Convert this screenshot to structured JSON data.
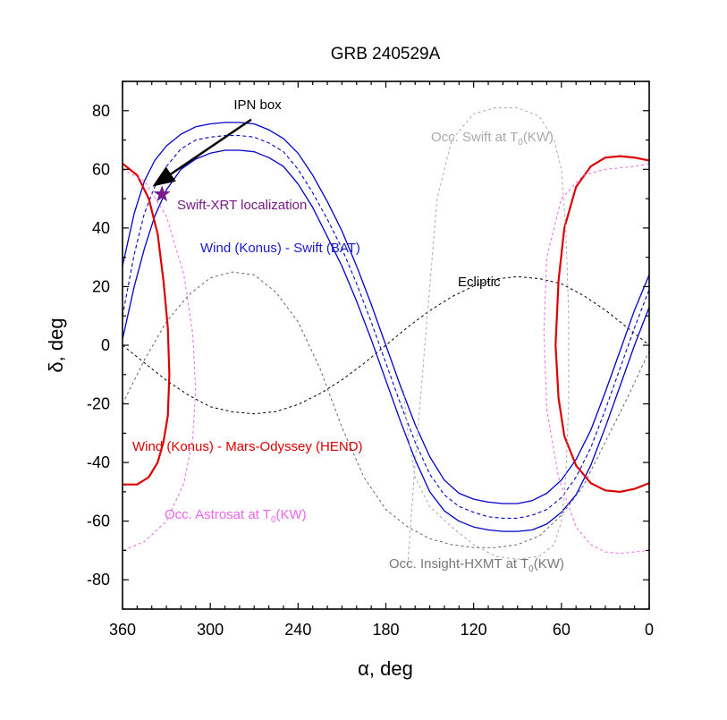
{
  "chart_data": {
    "type": "line",
    "title": "GRB 240529A",
    "xlabel": "α, deg",
    "ylabel": "δ, deg",
    "xlim": [
      360,
      0
    ],
    "ylim": [
      -90,
      90
    ],
    "x_reversed": true,
    "x_ticks": [
      "360",
      "300",
      "240",
      "180",
      "120",
      "60",
      "0"
    ],
    "y_ticks": [
      "80",
      "60",
      "40",
      "20",
      "0",
      "-20",
      "-40",
      "-60",
      "-80"
    ],
    "grid": false,
    "annotations": {
      "ipn_box": "IPN box",
      "swift_xrt": "Swift-XRT localization",
      "wind_swift": "Wind (Konus) - Swift (BAT)",
      "ecliptic": "Ecliptic",
      "wind_mo": "Wind (Konus) - Mars-Odyssey (HEND)",
      "occ_swift": "Occ. Swift at T",
      "occ_swift_sub": "0",
      "occ_swift_tail": "(KW)",
      "occ_astrosat": "Occ. Astrosat at T",
      "occ_astrosat_sub": "0",
      "occ_astrosat_tail": "(KW)",
      "occ_hxmt": "Occ. Insight-HXMT at T",
      "occ_hxmt_sub": "0",
      "occ_hxmt_tail": "(KW)"
    },
    "source_position": {
      "ra": 333,
      "dec": 51.5
    },
    "arrow": {
      "from": {
        "ra": 272,
        "dec": 77
      },
      "to": {
        "ra": 337,
        "dec": 55
      }
    },
    "colors": {
      "wind_swift": "#0000cc",
      "wind_mo": "#dd0000",
      "ecliptic": "#000000",
      "occ_swift": "#aaaaaa",
      "occ_astrosat": "#ee66ee",
      "occ_hxmt": "#666666",
      "star": "#7a1a8a",
      "swift_xrt_label": "#7a1a8a"
    },
    "series": [
      {
        "key": "ecliptic",
        "style": "dashed",
        "x": [
          360,
          345,
          330,
          315,
          300,
          285,
          270,
          255,
          240,
          225,
          210,
          195,
          180,
          165,
          150,
          135,
          120,
          105,
          90,
          75,
          60,
          45,
          30,
          15,
          0
        ],
        "y": [
          0,
          -6,
          -12,
          -17,
          -21,
          -22.7,
          -23.4,
          -22.6,
          -20.2,
          -16.5,
          -11.8,
          -6.2,
          0,
          6.2,
          11.8,
          16.5,
          20.2,
          22.6,
          23.4,
          22.7,
          21,
          17,
          12,
          6,
          0
        ]
      },
      {
        "key": "wind_swift",
        "style": "dashed",
        "x": [
          360,
          352,
          345,
          338,
          330,
          320,
          310,
          300,
          290,
          280,
          270,
          260,
          250,
          240,
          230,
          220,
          210,
          200,
          190,
          180,
          170,
          160,
          150,
          140,
          130,
          120,
          110,
          100,
          90,
          80,
          70,
          60,
          50,
          40,
          30,
          20,
          10,
          0
        ],
        "y": [
          10,
          31,
          45,
          54,
          61,
          67,
          70,
          71,
          71.5,
          71.5,
          71,
          69,
          66,
          60,
          52,
          43,
          33,
          21,
          8,
          -6,
          -20,
          -33,
          -44,
          -51,
          -55,
          -57,
          -58.5,
          -59,
          -59,
          -58,
          -56,
          -52,
          -45,
          -35,
          -22,
          -8,
          6,
          19
        ]
      },
      {
        "key": "wind_swift_upper",
        "style": "solid",
        "x": [
          360,
          352,
          345,
          338,
          330,
          320,
          310,
          300,
          290,
          280,
          270,
          260,
          250,
          240,
          230,
          220,
          210,
          200,
          190,
          180,
          170,
          160,
          150,
          140,
          130,
          120,
          110,
          100,
          90,
          80,
          70,
          60,
          50,
          40,
          30,
          20,
          10,
          0
        ],
        "y": [
          27,
          45,
          56,
          63,
          68,
          72,
          74.5,
          75.5,
          76,
          76,
          75.5,
          73.5,
          70.5,
          65.5,
          58,
          49,
          39,
          27,
          14,
          0,
          -14,
          -27,
          -38,
          -46,
          -50.5,
          -52.5,
          -53.5,
          -54,
          -54,
          -53,
          -50.5,
          -46,
          -39,
          -29,
          -16,
          -2,
          12,
          24
        ]
      },
      {
        "key": "wind_swift_lower",
        "style": "solid",
        "x": [
          360,
          352,
          345,
          338,
          330,
          320,
          310,
          300,
          290,
          280,
          270,
          260,
          250,
          240,
          230,
          220,
          210,
          200,
          190,
          180,
          170,
          160,
          150,
          140,
          130,
          120,
          110,
          100,
          90,
          80,
          70,
          60,
          50,
          40,
          30,
          20,
          10,
          0
        ],
        "y": [
          2,
          20,
          33,
          44,
          53,
          60,
          63.5,
          65.5,
          66.5,
          66.5,
          66,
          64,
          61,
          55,
          47,
          37,
          27,
          15,
          2,
          -12,
          -26,
          -39,
          -50,
          -56.5,
          -60,
          -62,
          -63,
          -63.5,
          -63.5,
          -63,
          -61,
          -57,
          -51,
          -41,
          -28,
          -14,
          0,
          13
        ]
      },
      {
        "key": "wind_mo_left",
        "style": "solid",
        "x": [
          360,
          350,
          342,
          336,
          332,
          329,
          328,
          329,
          332,
          336,
          342,
          350,
          360
        ],
        "y": [
          62,
          58,
          50,
          38,
          22,
          6,
          -10,
          -24,
          -33,
          -40,
          -45,
          -47.5,
          -47.5
        ]
      },
      {
        "key": "wind_mo_right",
        "style": "solid",
        "x": [
          0,
          10,
          20,
          30,
          40,
          50,
          58,
          62,
          64,
          62,
          58,
          50,
          40,
          30,
          20,
          10,
          0
        ],
        "y": [
          63,
          64,
          64.5,
          64,
          61,
          54,
          40,
          22,
          0,
          -18,
          -31,
          -41,
          -47,
          -49.5,
          -50,
          -49,
          -47
        ]
      },
      {
        "key": "occ_astrosat_left",
        "style": "dashed",
        "x": [
          360,
          345,
          330,
          318,
          312,
          310,
          312,
          318,
          330,
          345,
          360
        ],
        "y": [
          60,
          56,
          44,
          24,
          4,
          -15,
          -32,
          -47,
          -60,
          -67,
          -70
        ]
      },
      {
        "key": "occ_astrosat_right",
        "style": "dashed",
        "x": [
          0,
          10,
          20,
          30,
          45,
          60,
          70,
          72,
          70,
          62,
          50,
          40,
          30,
          20,
          10,
          0
        ],
        "y": [
          62,
          61,
          60.5,
          60,
          58,
          50,
          30,
          5,
          -22,
          -45,
          -62,
          -68,
          -70.5,
          -71,
          -70.5,
          -70
        ]
      },
      {
        "key": "occ_swift",
        "style": "dashed",
        "x": [
          165,
          160,
          155,
          150,
          145,
          135,
          120,
          105,
          90,
          75,
          65,
          60,
          57,
          55,
          55,
          57,
          60,
          65,
          75,
          90,
          105,
          120,
          135,
          150,
          160,
          165,
          168
        ],
        "y": [
          -75,
          -40,
          -10,
          20,
          50,
          70,
          79,
          81,
          81,
          78,
          70,
          60,
          40,
          10,
          -20,
          -45,
          -60,
          -68,
          -72,
          -73,
          -72,
          -68,
          -62,
          -55,
          -45,
          -30,
          -15
        ]
      },
      {
        "key": "occ_hxmt",
        "style": "dashed",
        "x": [
          360,
          345,
          330,
          315,
          300,
          285,
          270,
          255,
          240,
          225,
          210,
          195,
          180,
          165,
          150,
          135,
          120,
          105,
          90,
          75,
          60,
          45,
          30,
          15,
          0
        ],
        "y": [
          -20,
          -5,
          8,
          17,
          23,
          25,
          24,
          18,
          8,
          -8,
          -28,
          -45,
          -56,
          -62,
          -66,
          -68,
          -69,
          -69,
          -68,
          -65,
          -58,
          -48,
          -33,
          -18,
          -2
        ]
      }
    ]
  }
}
